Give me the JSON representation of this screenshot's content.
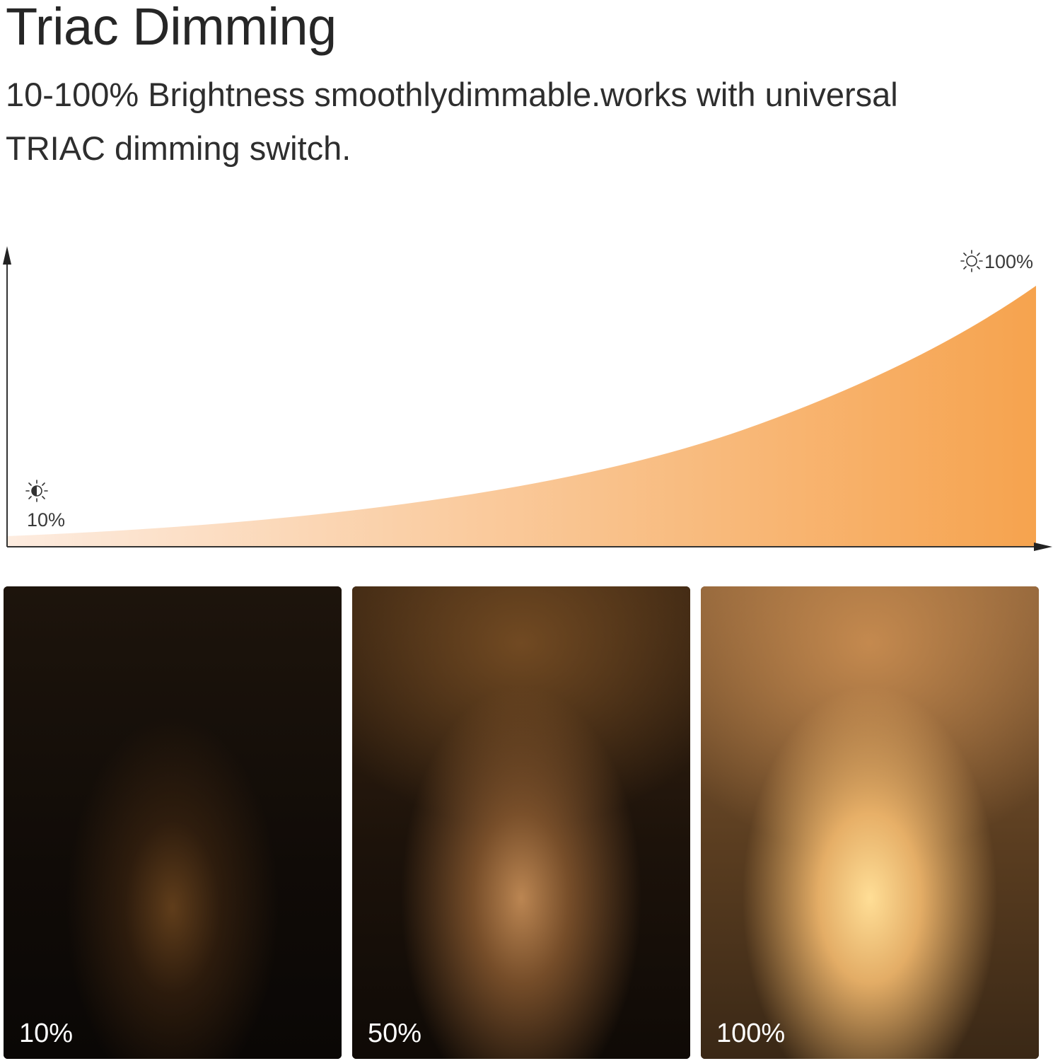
{
  "header": {
    "title": "Triac Dimming",
    "subtitle_line1": "10-100% Brightness smoothlydimmable.works with universal",
    "subtitle_line2": "TRIAC dimming switch."
  },
  "curve": {
    "start_label": "10%",
    "end_label": "100%",
    "start_icon": "half-sun-icon",
    "end_icon": "sun-icon",
    "gradient_start_color": "#fdece0",
    "gradient_end_color": "#f6a34e"
  },
  "panels": [
    {
      "label": "10%"
    },
    {
      "label": "50%"
    },
    {
      "label": "100%"
    }
  ]
}
